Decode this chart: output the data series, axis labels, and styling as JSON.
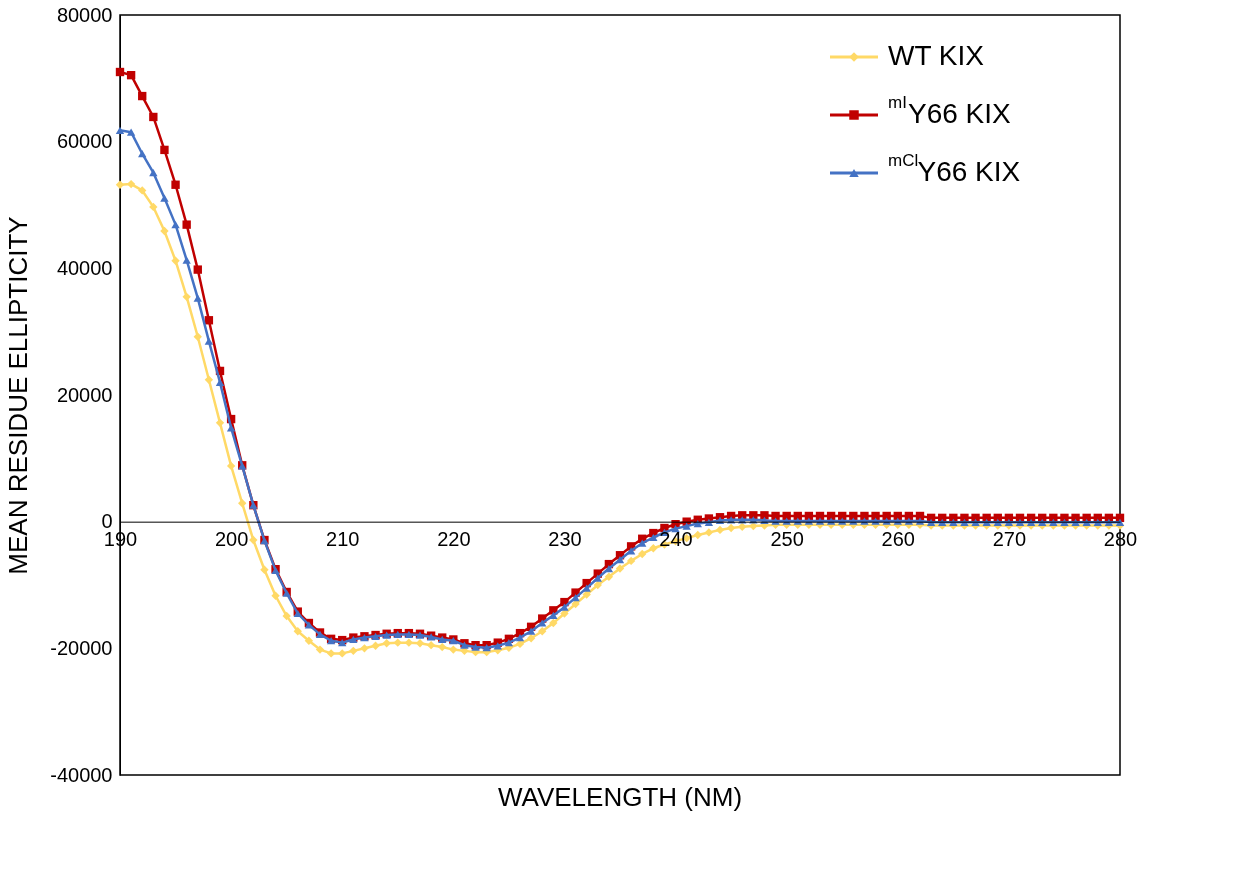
{
  "chart_data": {
    "type": "line",
    "xlabel": "WAVELENGTH (NM)",
    "ylabel": "MEAN RESIDUE ELLIPTICITY",
    "x": [
      190,
      191,
      192,
      193,
      194,
      195,
      196,
      197,
      198,
      199,
      200,
      201,
      202,
      203,
      204,
      205,
      206,
      207,
      208,
      209,
      210,
      211,
      212,
      213,
      214,
      215,
      216,
      217,
      218,
      219,
      220,
      221,
      222,
      223,
      224,
      225,
      226,
      227,
      228,
      229,
      230,
      231,
      232,
      233,
      234,
      235,
      236,
      237,
      238,
      239,
      240,
      241,
      242,
      243,
      244,
      245,
      246,
      247,
      248,
      249,
      250,
      251,
      252,
      253,
      254,
      255,
      256,
      257,
      258,
      259,
      260,
      261,
      262,
      263,
      264,
      265,
      266,
      267,
      268,
      269,
      270,
      271,
      272,
      273,
      274,
      275,
      276,
      277,
      278,
      279,
      280
    ],
    "series": [
      {
        "name": "WT KIX",
        "color": "#ffd966",
        "marker": "diamond",
        "values": [
          53200,
          53300,
          52300,
          49700,
          45900,
          41200,
          35500,
          29200,
          22400,
          15600,
          8800,
          2900,
          -2900,
          -7600,
          -11700,
          -14900,
          -17300,
          -18800,
          -20200,
          -20800,
          -20800,
          -20400,
          -20000,
          -19600,
          -19200,
          -19100,
          -19100,
          -19200,
          -19500,
          -19800,
          -20200,
          -20400,
          -20600,
          -20600,
          -20300,
          -19900,
          -19300,
          -18400,
          -17300,
          -16000,
          -14500,
          -13000,
          -11500,
          -10000,
          -8700,
          -7400,
          -6200,
          -5100,
          -4200,
          -3600,
          -3100,
          -2600,
          -2100,
          -1700,
          -1300,
          -1000,
          -800,
          -700,
          -600,
          -500,
          -500,
          -500,
          -500,
          -500,
          -500,
          -500,
          -500,
          -500,
          -500,
          -500,
          -500,
          -500,
          -500,
          -600,
          -600,
          -600,
          -600,
          -600,
          -600,
          -600,
          -600,
          -600,
          -600,
          -600,
          -600,
          -600,
          -600,
          -600,
          -600,
          -600,
          -600
        ]
      },
      {
        "name": "$^{mI}$Y66 KIX",
        "color": "#c00000",
        "marker": "square",
        "values": [
          71000,
          70500,
          67200,
          63900,
          58700,
          53200,
          46900,
          39800,
          31800,
          23800,
          16200,
          8900,
          2600,
          -2900,
          -7500,
          -11100,
          -14200,
          -16000,
          -17500,
          -18500,
          -18700,
          -18300,
          -18100,
          -17900,
          -17700,
          -17600,
          -17600,
          -17700,
          -18000,
          -18300,
          -18600,
          -19200,
          -19500,
          -19500,
          -19100,
          -18500,
          -17600,
          -16600,
          -15300,
          -14000,
          -12700,
          -11200,
          -9700,
          -8200,
          -6700,
          -5300,
          -3900,
          -2700,
          -1800,
          -1000,
          -400,
          0,
          300,
          500,
          700,
          900,
          1000,
          1000,
          1000,
          900,
          900,
          900,
          900,
          900,
          900,
          900,
          900,
          900,
          900,
          900,
          900,
          900,
          900,
          600,
          600,
          600,
          600,
          600,
          600,
          600,
          600,
          600,
          600,
          600,
          600,
          600,
          600,
          600,
          600,
          600,
          600
        ]
      },
      {
        "name": "$^{mCl}$Y66 KIX",
        "color": "#4472c4",
        "marker": "triangle",
        "values": [
          61800,
          61500,
          58100,
          55100,
          51100,
          46900,
          41300,
          35300,
          28500,
          22000,
          14800,
          8800,
          2600,
          -3000,
          -7700,
          -11300,
          -14500,
          -16300,
          -17800,
          -18800,
          -19100,
          -18600,
          -18300,
          -18100,
          -17900,
          -17800,
          -17800,
          -17900,
          -18200,
          -18600,
          -18800,
          -19500,
          -19800,
          -19900,
          -19600,
          -19100,
          -18300,
          -17300,
          -16000,
          -14800,
          -13500,
          -12000,
          -10500,
          -8900,
          -7400,
          -6000,
          -4600,
          -3400,
          -2500,
          -1700,
          -1100,
          -700,
          -300,
          -100,
          200,
          300,
          300,
          300,
          200,
          100,
          100,
          100,
          100,
          100,
          100,
          100,
          100,
          100,
          100,
          100,
          100,
          100,
          100,
          -100,
          -100,
          -100,
          -100,
          -100,
          -100,
          -100,
          -100,
          -100,
          -100,
          -100,
          -100,
          -100,
          -100,
          -100,
          -100,
          -100,
          -100
        ]
      }
    ],
    "xlim": [
      190,
      280
    ],
    "xticks": [
      190,
      200,
      210,
      220,
      230,
      240,
      250,
      260,
      270,
      280
    ],
    "ylim": [
      -40000,
      80000
    ],
    "yticks": [
      -40000,
      -20000,
      0,
      20000,
      40000,
      60000,
      80000
    ],
    "grid": false,
    "legend": "top right",
    "line_style": "solid"
  }
}
